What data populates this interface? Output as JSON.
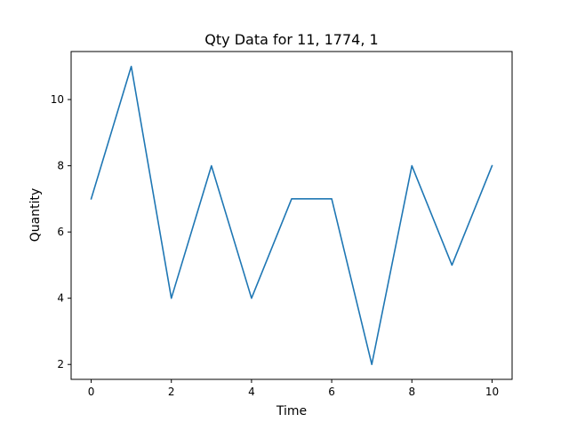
{
  "chart_data": {
    "type": "line",
    "title": "Qty Data for 11, 1774, 1",
    "xlabel": "Time",
    "ylabel": "Quantity",
    "x": [
      0,
      1,
      2,
      3,
      4,
      5,
      6,
      7,
      8,
      9,
      10
    ],
    "series": [
      {
        "values": [
          7,
          11,
          4,
          8,
          4,
          7,
          7,
          2,
          8,
          5,
          8
        ],
        "color": "#1f77b4"
      }
    ],
    "xlim": [
      -0.5,
      10.5
    ],
    "ylim": [
      1.55,
      11.45
    ],
    "xticks": [
      0,
      2,
      4,
      6,
      8,
      10
    ],
    "yticks": [
      2,
      4,
      6,
      8,
      10
    ],
    "grid": false,
    "legend": "none"
  }
}
